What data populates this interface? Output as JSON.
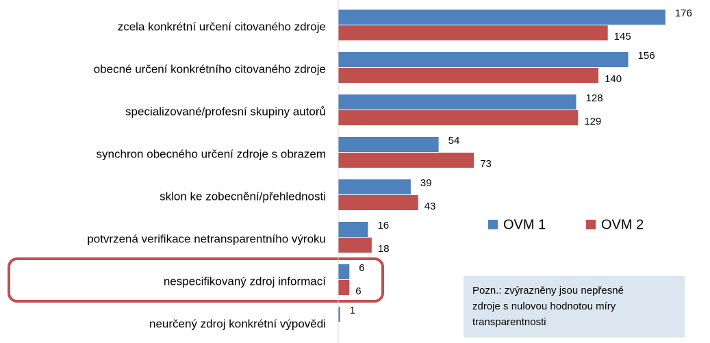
{
  "chart_data": {
    "type": "barh",
    "categories": [
      "zcela konkrétní určení citovaného zdroje",
      "obecné určení konkrétního citovaného zdroje",
      "specializované/profesní skupiny autorů",
      "synchron obecného určení zdroje s obrazem",
      "sklon ke zobecnění/přehlednosti",
      "potvrzená verifikace netransparentního výroku",
      "nespecifikovaný zdroj informací",
      "neurčený zdroj konkrétní výpovědi"
    ],
    "series": [
      {
        "name": "OVM 1",
        "color": "#4f81bd",
        "values": [
          176,
          156,
          128,
          54,
          39,
          16,
          6,
          1
        ]
      },
      {
        "name": "OVM 2",
        "color": "#c0504d",
        "values": [
          145,
          140,
          129,
          73,
          43,
          18,
          6,
          null
        ]
      }
    ],
    "xlim": [
      0,
      200
    ],
    "legend": "right",
    "note": [
      "Pozn.: zvýrazněny jsou nepřesné",
      "zdroje s nulovou hodnotou míry",
      "transparentnosti"
    ]
  }
}
